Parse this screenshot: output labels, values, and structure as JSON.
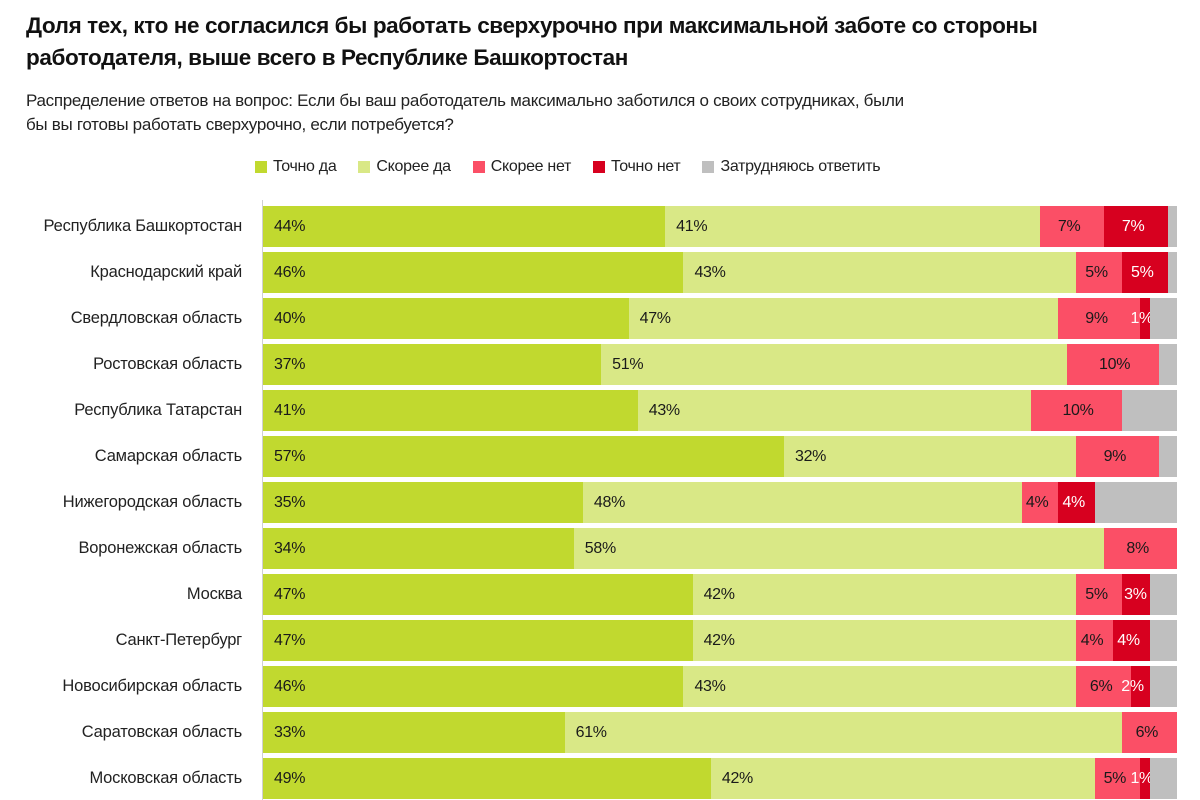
{
  "title": "Доля тех, кто не согласился бы работать сверхурочно при максимальной заботе со стороны работодателя, выше всего в Республике Башкортостан",
  "subtitle": "Распределение ответов на вопрос: Если бы ваш работодатель максимально заботился о своих сотрудниках, были бы вы готовы работать сверхурочно, если потребуется?",
  "chart_data": {
    "type": "bar",
    "orientation": "horizontal",
    "stacked": true,
    "normalized": true,
    "title": "Доля тех, кто не согласился бы работать сверхурочно при максимальной заботе со стороны работодателя, выше всего в Республике Башкортостан",
    "subtitle": "Распределение ответов на вопрос: Если бы ваш работодатель максимально заботился о своих сотрудниках, были бы вы готовы работать сверхурочно, если потребуется?",
    "xlim": [
      0,
      100
    ],
    "unit": "%",
    "legend_position": "top",
    "categories": [
      "Республика Башкортостан",
      "Краснодарский край",
      "Свердловская область",
      "Ростовская область",
      "Республика Татарстан",
      "Самарская область",
      "Нижегородская область",
      "Воронежская область",
      "Москва",
      "Санкт-Петербург",
      "Новосибирская область",
      "Саратовская область",
      "Московская область"
    ],
    "series": [
      {
        "name": "Точно да",
        "color": "#c1d92f",
        "label_color": "#1a1a1a",
        "values": [
          44,
          46,
          40,
          37,
          41,
          57,
          35,
          34,
          47,
          47,
          46,
          33,
          49
        ]
      },
      {
        "name": "Скорее да",
        "color": "#d9e886",
        "label_color": "#1a1a1a",
        "values": [
          41,
          43,
          47,
          51,
          43,
          32,
          48,
          58,
          42,
          42,
          43,
          61,
          42
        ]
      },
      {
        "name": "Скорее нет",
        "color": "#fb4f66",
        "label_color": "#1a1a1a",
        "values": [
          7,
          5,
          9,
          10,
          10,
          9,
          4,
          8,
          5,
          4,
          6,
          6,
          5
        ]
      },
      {
        "name": "Точно нет",
        "color": "#d7001f",
        "label_color": "#ffffff",
        "values": [
          7,
          5,
          1,
          null,
          null,
          null,
          4,
          null,
          3,
          4,
          2,
          null,
          1
        ]
      },
      {
        "name": "Затрудняюсь ответить",
        "color": "#bfbfbf",
        "label_color": "#1a1a1a",
        "values": [
          null,
          null,
          null,
          null,
          null,
          null,
          null,
          null,
          null,
          null,
          null,
          null,
          null
        ],
        "note": "remainder to 100%, unlabeled"
      }
    ]
  }
}
